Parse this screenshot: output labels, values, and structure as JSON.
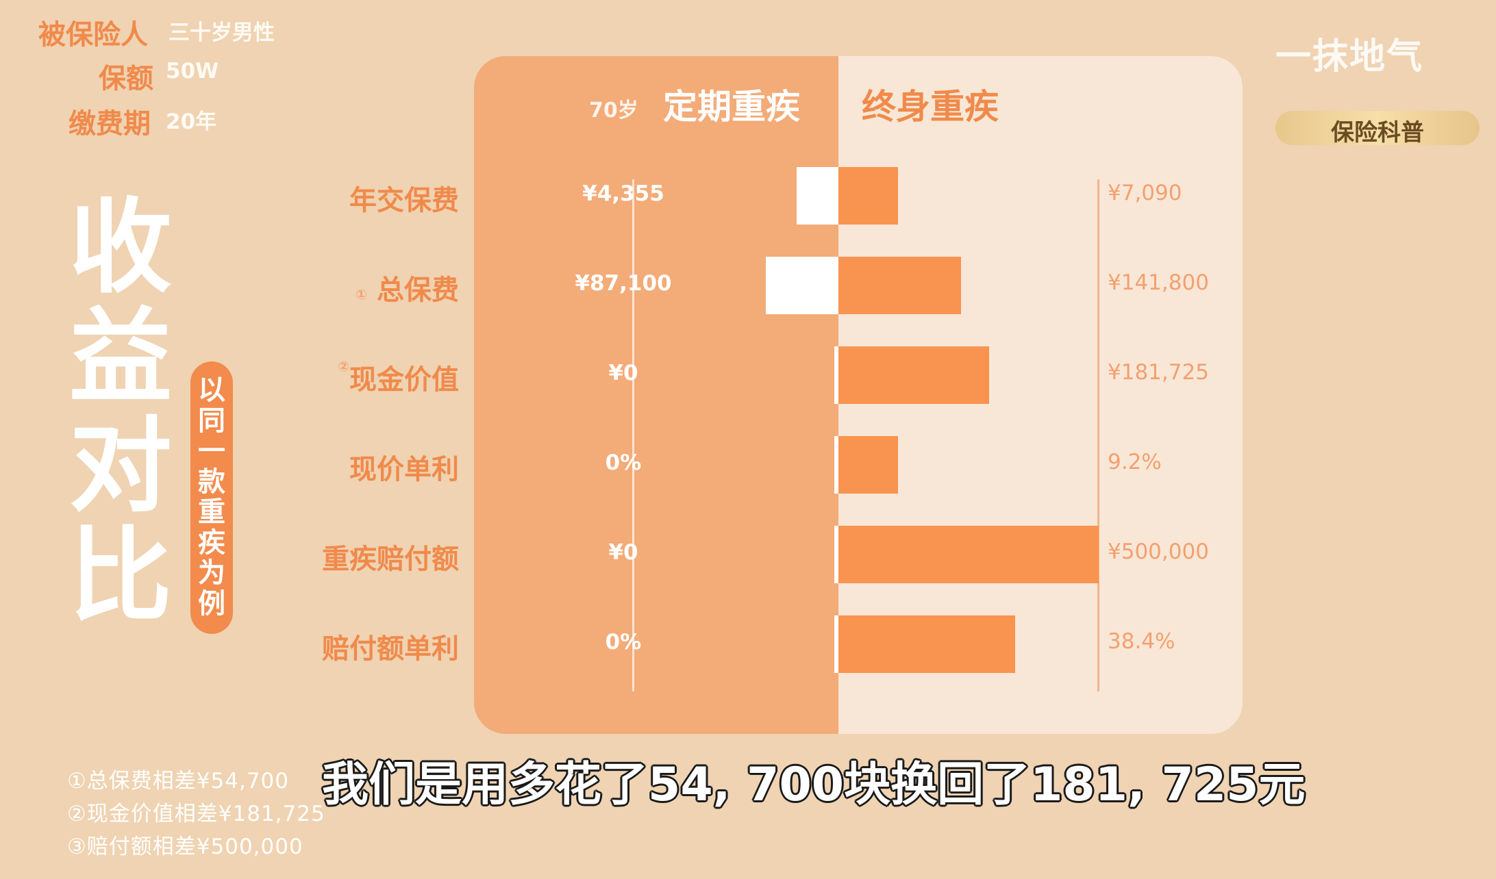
{
  "header": {
    "insured_label": "被保险人",
    "insured_value": "三十岁男性",
    "amount_label": "保额",
    "amount_value": "50W",
    "period_label": "缴费期",
    "period_value": "20年"
  },
  "side_title": {
    "chars": [
      "收",
      "益",
      "对",
      "比"
    ],
    "pill_chars": [
      "以",
      "同",
      "一",
      "款",
      "重",
      "疾",
      "为",
      "例"
    ]
  },
  "chart_data": {
    "type": "bar",
    "layout": "back-to-back",
    "title": "",
    "series": [
      {
        "name": "定期重疾",
        "name_prefix": "70岁",
        "value_labels": [
          "¥4,355",
          "¥87,100",
          "¥0",
          "0%",
          "¥0",
          "0%"
        ]
      },
      {
        "name": "终身重疾",
        "value_labels": [
          "¥7,090",
          "¥141,800",
          "¥181,725",
          "9.2%",
          "¥500,000",
          "38.4%"
        ]
      }
    ],
    "rows": [
      {
        "label": "年交保费",
        "marker": "",
        "term": 4355,
        "life": 7090
      },
      {
        "label": "总保费",
        "marker": "①",
        "term": 87100,
        "life": 141800
      },
      {
        "label": "现金价值",
        "marker": "②",
        "term": 0,
        "life": 181725
      },
      {
        "label": "现价单利",
        "marker": "",
        "term": 0,
        "life": 9.2
      },
      {
        "label": "重疾赔付额",
        "marker": "",
        "term": 0,
        "life": 500000
      },
      {
        "label": "赔付额单利",
        "marker": "",
        "term": 0,
        "life": 38.4
      }
    ],
    "bar_fraction": {
      "term": [
        0.16,
        0.28,
        0,
        0,
        0,
        0
      ],
      "life": [
        0.23,
        0.47,
        0.58,
        0.23,
        1.0,
        0.68
      ]
    },
    "grid": false,
    "legend": "none"
  },
  "notes": [
    "①总保费相差¥54,700",
    "②现金价值相差¥181,725",
    "③赔付额相差¥500,000"
  ],
  "subtitle": "我们是用多花了54, 700块换回了181, 725元",
  "brand": {
    "logo_text": "一抹地气",
    "badge": "保险科普"
  },
  "colors": {
    "background": "#efd3b2",
    "term_panel": "#f3ab78",
    "life_panel": "#f8e7d6",
    "accent": "#f08a4b",
    "life_bar": "#f99350",
    "term_bar": "#ffffff"
  }
}
